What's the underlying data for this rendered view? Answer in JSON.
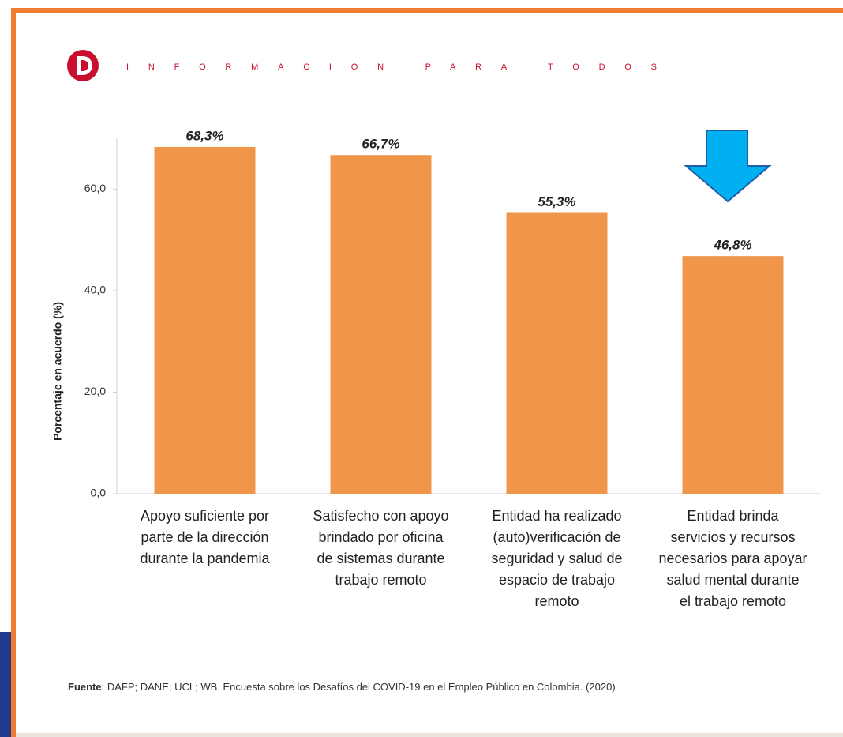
{
  "chart_data": {
    "type": "bar",
    "header": "INFORMACIÓN PARA TODOS",
    "ylabel": "Porcentaje en acuerdo (%)",
    "categories": [
      "Apoyo suficiente por\nparte de la dirección\ndurante la pandemia",
      "Satisfecho con apoyo\nbrindado por oficina\nde sistemas durante\ntrabajo remoto",
      "Entidad ha realizado\n(auto)verificación de\nseguridad y salud de\nespacio de trabajo\nremoto",
      "Entidad brinda\nservicios y recursos\nnecesarios para apoyar\nsalud mental durante\nel trabajo remoto"
    ],
    "values": [
      68.3,
      66.7,
      55.3,
      46.8
    ],
    "value_labels": [
      "68,3%",
      "66,7%",
      "55,3%",
      "46,8%"
    ],
    "color": "#f0964a",
    "ylim": [
      0,
      70
    ],
    "yticks": [
      {
        "value": 0,
        "label": "0,0"
      },
      {
        "value": 20,
        "label": "20,0"
      },
      {
        "value": 40,
        "label": "40,0"
      },
      {
        "value": 60,
        "label": "60,0"
      }
    ],
    "grid": false,
    "source_label": "Fuente",
    "source_text": ": DAFP; DANE; UCL; WB. Encuesta sobre los Desafíos del COVID-19 en el Empleo Público en Colombia. (2020)"
  }
}
